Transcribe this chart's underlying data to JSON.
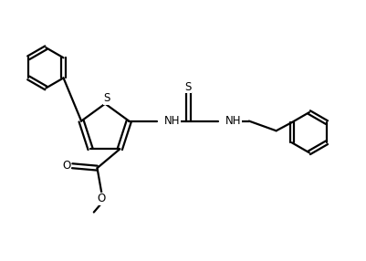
{
  "bg_color": "#ffffff",
  "line_color": "#000000",
  "line_width": 1.6,
  "font_size": 8.5,
  "figsize": [
    4.02,
    2.86
  ],
  "dpi": 100,
  "xlim": [
    0,
    10.5
  ],
  "ylim": [
    0,
    7.5
  ]
}
